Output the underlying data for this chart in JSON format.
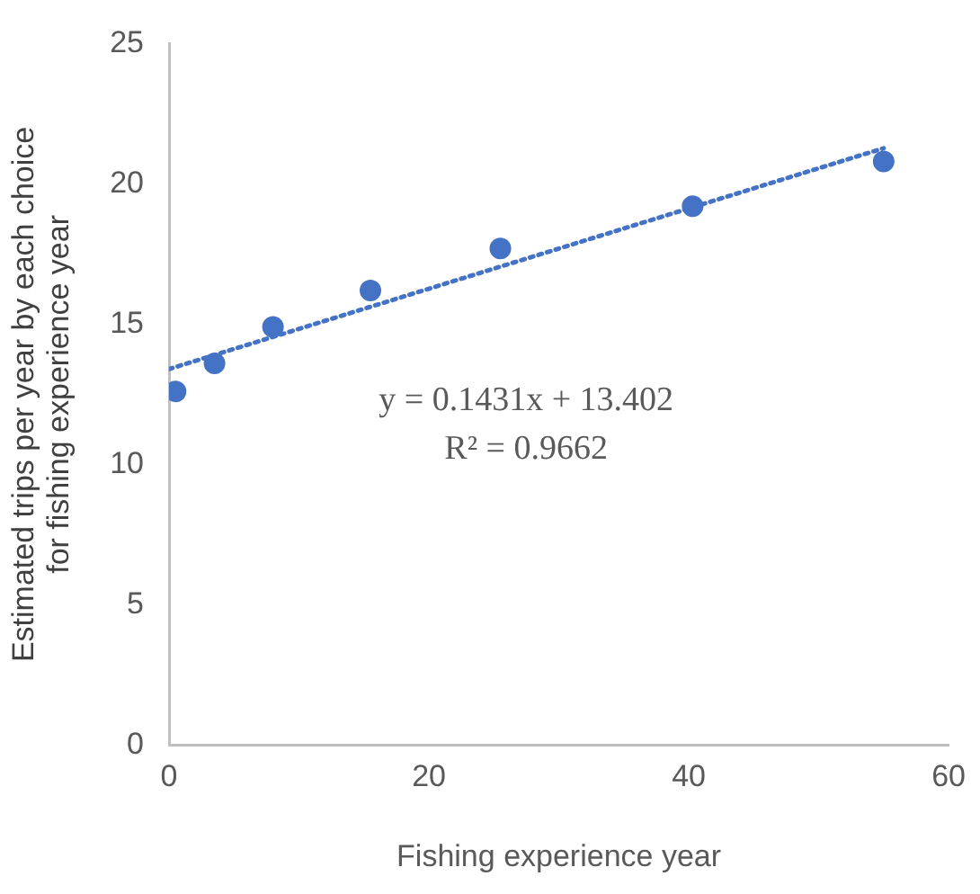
{
  "chart_data": {
    "type": "scatter",
    "xlabel": "Fishing experience year",
    "ylabel": "Estimated trips per year by each choice\nfor fishing experience year",
    "xlim": [
      0,
      60
    ],
    "xticks": [
      0,
      20,
      40,
      60
    ],
    "ylim": [
      0,
      25
    ],
    "yticks": [
      0,
      5,
      10,
      15,
      20,
      25
    ],
    "grid": false,
    "legend": false,
    "marker": "circle",
    "series": [
      {
        "color": "#4472c4",
        "x": [
          0.5,
          3.5,
          8,
          15.5,
          25.5,
          40.3,
          55
        ],
        "values": [
          12.6,
          13.6,
          14.9,
          16.2,
          17.7,
          19.2,
          20.8
        ]
      },
      {
        "type": "line",
        "color": "#4472c4",
        "line_style": "dotted",
        "marker": "none",
        "x": [
          0,
          55
        ],
        "values": [
          13.4,
          21.27
        ]
      }
    ],
    "annotations": [
      "y = 0.1431x + 13.402",
      "R² = 0.9662"
    ]
  }
}
